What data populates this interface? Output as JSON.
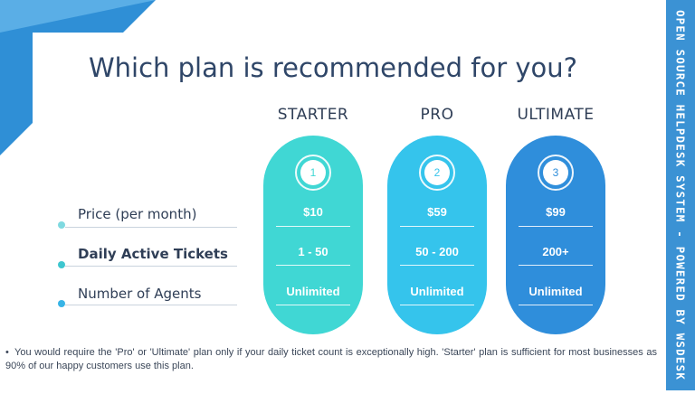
{
  "title": "Which plan is recommended for you?",
  "side_banner": "OPEN SOURCE HELPDESK SYSTEM - POWERED BY WSDESK",
  "rows": [
    {
      "label": "Price (per month)",
      "bold": false,
      "dot_color": "#7fd9e0"
    },
    {
      "label": "Daily Active Tickets",
      "bold": true,
      "dot_color": "#3ec6cf"
    },
    {
      "label": "Number of Agents",
      "bold": false,
      "dot_color": "#38b4e6"
    }
  ],
  "plans": [
    {
      "name": "STARTER",
      "number": "1",
      "color": "#40d7d4",
      "badge_text_color": "#40d7d4",
      "values": [
        "$10",
        "1 - 50",
        "Unlimited"
      ]
    },
    {
      "name": "PRO",
      "number": "2",
      "color": "#35c4ec",
      "badge_text_color": "#35c4ec",
      "values": [
        "$59",
        "50 - 200",
        "Unlimited"
      ]
    },
    {
      "name": "ULTIMATE",
      "number": "3",
      "color": "#2f8edb",
      "badge_text_color": "#2f8edb",
      "values": [
        "$99",
        "200+",
        "Unlimited"
      ]
    }
  ],
  "footnote": "You would require the 'Pro' or 'Ultimate' plan only if your daily ticket count is exceptionally high. 'Starter' plan is sufficient for most businesses as 90% of our happy customers use this plan."
}
